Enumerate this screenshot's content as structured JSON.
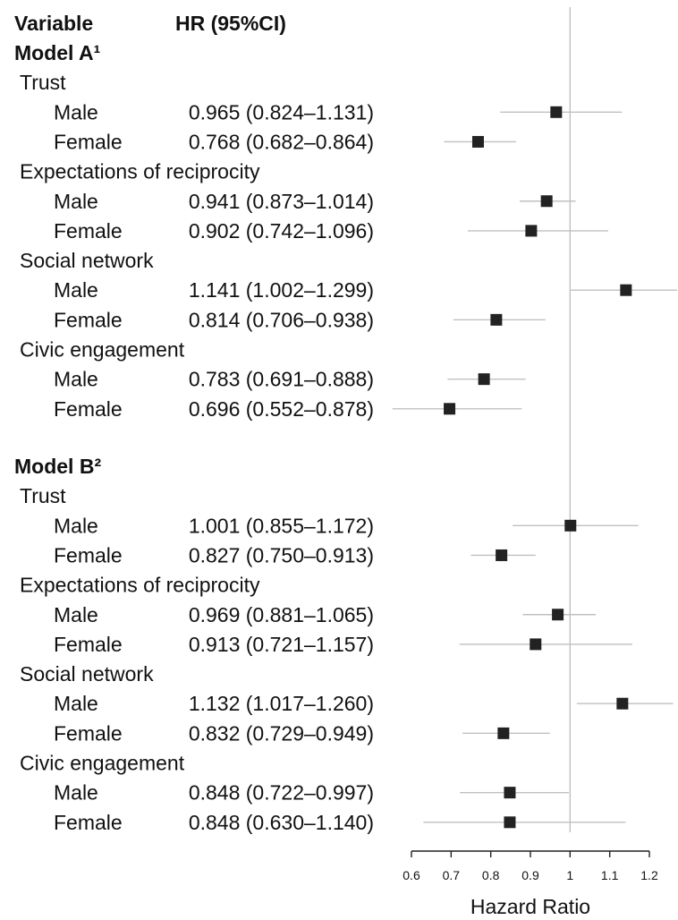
{
  "chart_data": {
    "type": "forest",
    "headers": {
      "variable": "Variable",
      "hr": "HR (95%CI)"
    },
    "xlabel": "Hazard Ratio",
    "xlim": [
      0.6,
      1.2
    ],
    "xticks": [
      "0.6",
      "0.7",
      "0.8",
      "0.9",
      "1",
      "1.1",
      "1.2"
    ],
    "reference_line": 1,
    "colors": {
      "marker": "#222222",
      "ci": "#c0c0c0",
      "reference": "#c0c0c0",
      "axis": "#222222"
    },
    "models": [
      {
        "label": "Model A¹",
        "groups": [
          {
            "label": "Trust",
            "rows": [
              {
                "label": "Male",
                "hr_text": "0.965 (0.824–1.131)",
                "hr": 0.965,
                "lo": 0.824,
                "hi": 1.131
              },
              {
                "label": "Female",
                "hr_text": "0.768 (0.682–0.864)",
                "hr": 0.768,
                "lo": 0.682,
                "hi": 0.864
              }
            ]
          },
          {
            "label": "Expectations of reciprocity",
            "rows": [
              {
                "label": "Male",
                "hr_text": "0.941 (0.873–1.014)",
                "hr": 0.941,
                "lo": 0.873,
                "hi": 1.014
              },
              {
                "label": "Female",
                "hr_text": "0.902 (0.742–1.096)",
                "hr": 0.902,
                "lo": 0.742,
                "hi": 1.096
              }
            ]
          },
          {
            "label": "Social network",
            "rows": [
              {
                "label": "Male",
                "hr_text": "1.141 (1.002–1.299)",
                "hr": 1.141,
                "lo": 1.002,
                "hi": 1.299
              },
              {
                "label": "Female",
                "hr_text": "0.814 (0.706–0.938)",
                "hr": 0.814,
                "lo": 0.706,
                "hi": 0.938
              }
            ]
          },
          {
            "label": "Civic engagement",
            "rows": [
              {
                "label": "Male",
                "hr_text": "0.783 (0.691–0.888)",
                "hr": 0.783,
                "lo": 0.691,
                "hi": 0.888
              },
              {
                "label": "Female",
                "hr_text": "0.696 (0.552–0.878)",
                "hr": 0.696,
                "lo": 0.552,
                "hi": 0.878
              }
            ]
          }
        ]
      },
      {
        "label": "Model B²",
        "groups": [
          {
            "label": "Trust",
            "rows": [
              {
                "label": "Male",
                "hr_text": "1.001 (0.855–1.172)",
                "hr": 1.001,
                "lo": 0.855,
                "hi": 1.172
              },
              {
                "label": "Female",
                "hr_text": "0.827 (0.750–0.913)",
                "hr": 0.827,
                "lo": 0.75,
                "hi": 0.913
              }
            ]
          },
          {
            "label": "Expectations of reciprocity",
            "rows": [
              {
                "label": "Male",
                "hr_text": "0.969 (0.881–1.065)",
                "hr": 0.969,
                "lo": 0.881,
                "hi": 1.065
              },
              {
                "label": "Female",
                "hr_text": "0.913 (0.721–1.157)",
                "hr": 0.913,
                "lo": 0.721,
                "hi": 1.157
              }
            ]
          },
          {
            "label": "Social network",
            "rows": [
              {
                "label": "Male",
                "hr_text": "1.132 (1.017–1.260)",
                "hr": 1.132,
                "lo": 1.017,
                "hi": 1.26
              },
              {
                "label": "Female",
                "hr_text": "0.832 (0.729–0.949)",
                "hr": 0.832,
                "lo": 0.729,
                "hi": 0.949
              }
            ]
          },
          {
            "label": "Civic engagement",
            "rows": [
              {
                "label": "Male",
                "hr_text": "0.848 (0.722–0.997)",
                "hr": 0.848,
                "lo": 0.722,
                "hi": 0.997
              },
              {
                "label": "Female",
                "hr_text": "0.848 (0.630–1.140)",
                "hr": 0.848,
                "lo": 0.63,
                "hi": 1.14
              }
            ]
          }
        ]
      }
    ]
  }
}
